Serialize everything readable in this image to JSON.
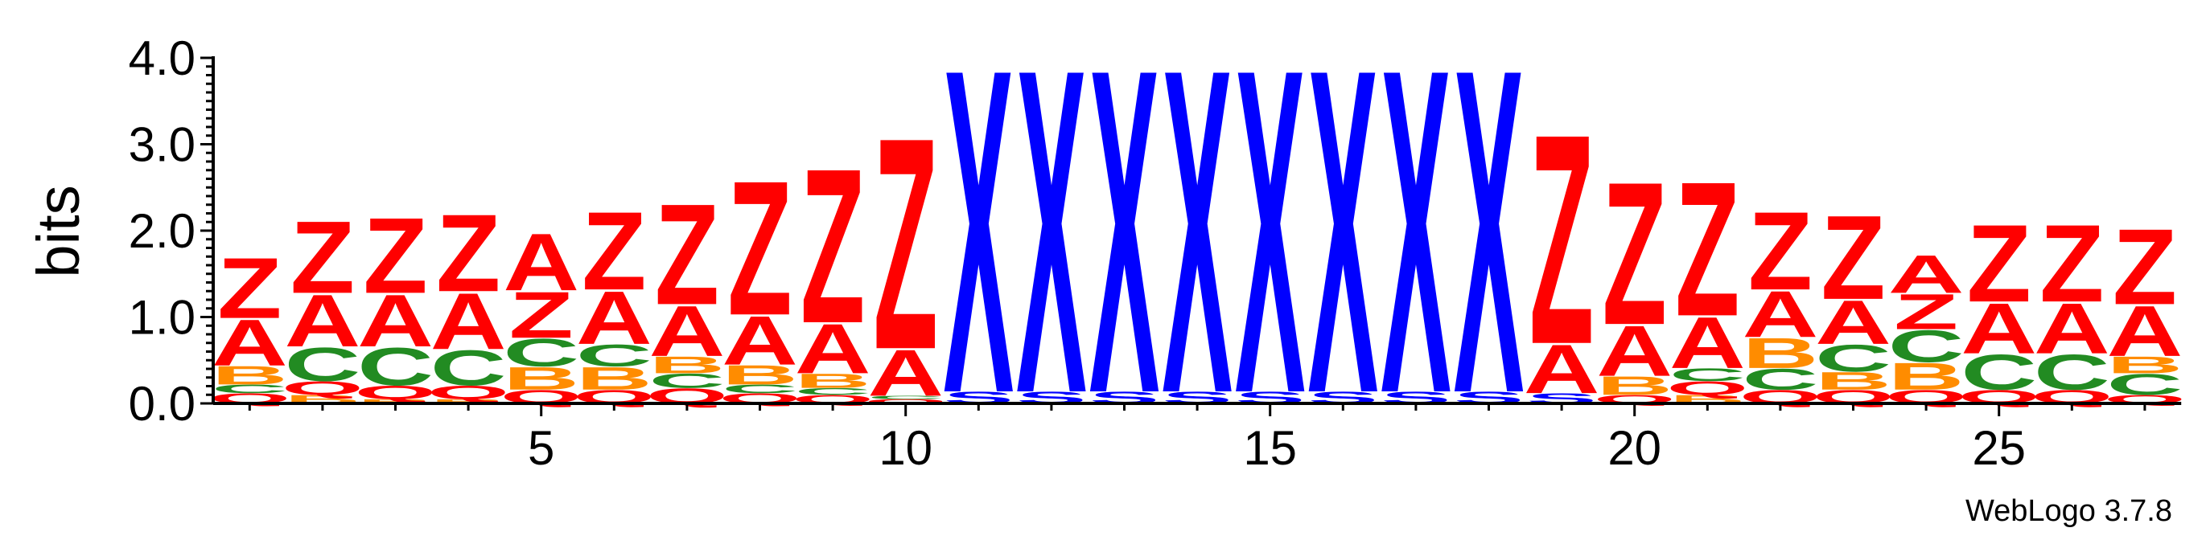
{
  "chart_data": {
    "type": "sequence-logo",
    "ylabel": "bits",
    "ylim": [
      0,
      4
    ],
    "yticks": [
      "0.0",
      "1.0",
      "2.0",
      "3.0",
      "4.0"
    ],
    "xticks": [
      5,
      10,
      15,
      20,
      25
    ],
    "positions": [
      1,
      2,
      3,
      4,
      5,
      6,
      7,
      8,
      9,
      10,
      11,
      12,
      13,
      14,
      15,
      16,
      17,
      18,
      19,
      20,
      21,
      22,
      23,
      24,
      25,
      26,
      27
    ],
    "colors": {
      "Z": "#ff0000",
      "A": "#ff0000",
      "Q": "#ff0000",
      "C": "#228b22",
      "B": "#ff8c00",
      "X": "#0000ff",
      "S": "#0000ff"
    },
    "stacks": [
      [
        [
          "Q",
          0.12
        ],
        [
          "C",
          0.1
        ],
        [
          "B",
          0.22
        ],
        [
          "A",
          0.55
        ],
        [
          "Z",
          0.72
        ]
      ],
      [
        [
          "B",
          0.1
        ],
        [
          "Q",
          0.16
        ],
        [
          "C",
          0.4
        ],
        [
          "A",
          0.62
        ],
        [
          "Z",
          0.86
        ]
      ],
      [
        [
          "B",
          0.05
        ],
        [
          "Q",
          0.16
        ],
        [
          "C",
          0.45
        ],
        [
          "A",
          0.62
        ],
        [
          "Z",
          0.9
        ]
      ],
      [
        [
          "B",
          0.05
        ],
        [
          "Q",
          0.16
        ],
        [
          "C",
          0.42
        ],
        [
          "A",
          0.67
        ],
        [
          "Z",
          0.92
        ]
      ],
      [
        [
          "Q",
          0.16
        ],
        [
          "B",
          0.27
        ],
        [
          "C",
          0.33
        ],
        [
          "Z",
          0.55
        ],
        [
          "A",
          0.68
        ]
      ],
      [
        [
          "Q",
          0.16
        ],
        [
          "B",
          0.27
        ],
        [
          "C",
          0.26
        ],
        [
          "A",
          0.63
        ],
        [
          "Z",
          0.93
        ]
      ],
      [
        [
          "Q",
          0.18
        ],
        [
          "C",
          0.17
        ],
        [
          "B",
          0.2
        ],
        [
          "A",
          0.6
        ],
        [
          "Z",
          1.2
        ]
      ],
      [
        [
          "Q",
          0.12
        ],
        [
          "C",
          0.1
        ],
        [
          "B",
          0.23
        ],
        [
          "A",
          0.58
        ],
        [
          "Z",
          1.6
        ]
      ],
      [
        [
          "Q",
          0.1
        ],
        [
          "C",
          0.08
        ],
        [
          "B",
          0.17
        ],
        [
          "A",
          0.59
        ],
        [
          "Z",
          1.84
        ]
      ],
      [
        [
          "Q",
          0.05
        ],
        [
          "C",
          0.04
        ],
        [
          "A",
          0.55
        ],
        [
          "Z",
          2.52
        ]
      ],
      [
        [
          "S",
          0.14
        ],
        [
          "X",
          3.86
        ]
      ],
      [
        [
          "S",
          0.14
        ],
        [
          "X",
          3.86
        ]
      ],
      [
        [
          "S",
          0.14
        ],
        [
          "X",
          3.86
        ]
      ],
      [
        [
          "S",
          0.14
        ],
        [
          "X",
          3.86
        ]
      ],
      [
        [
          "S",
          0.14
        ],
        [
          "X",
          3.86
        ]
      ],
      [
        [
          "S",
          0.14
        ],
        [
          "X",
          3.86
        ]
      ],
      [
        [
          "S",
          0.14
        ],
        [
          "X",
          3.86
        ]
      ],
      [
        [
          "S",
          0.14
        ],
        [
          "X",
          3.86
        ]
      ],
      [
        [
          "S",
          0.12
        ],
        [
          "A",
          0.58
        ],
        [
          "Z",
          2.5
        ]
      ],
      [
        [
          "Q",
          0.1
        ],
        [
          "B",
          0.22
        ],
        [
          "A",
          0.6
        ],
        [
          "Z",
          1.7
        ]
      ],
      [
        [
          "B",
          0.1
        ],
        [
          "Q",
          0.16
        ],
        [
          "C",
          0.15
        ],
        [
          "A",
          0.61
        ],
        [
          "Z",
          1.6
        ]
      ],
      [
        [
          "Q",
          0.16
        ],
        [
          "C",
          0.25
        ],
        [
          "B",
          0.36
        ],
        [
          "A",
          0.55
        ],
        [
          "Z",
          0.93
        ]
      ],
      [
        [
          "Q",
          0.16
        ],
        [
          "B",
          0.21
        ],
        [
          "C",
          0.32
        ],
        [
          "A",
          0.52
        ],
        [
          "Z",
          1.0
        ]
      ],
      [
        [
          "Q",
          0.16
        ],
        [
          "B",
          0.32
        ],
        [
          "C",
          0.38
        ],
        [
          "Z",
          0.42
        ],
        [
          "A",
          0.45
        ]
      ],
      [
        [
          "Q",
          0.16
        ],
        [
          "C",
          0.42
        ],
        [
          "A",
          0.6
        ],
        [
          "Z",
          0.92
        ]
      ],
      [
        [
          "Q",
          0.16
        ],
        [
          "C",
          0.42
        ],
        [
          "A",
          0.6
        ],
        [
          "Z",
          0.92
        ]
      ],
      [
        [
          "Q",
          0.1
        ],
        [
          "C",
          0.25
        ],
        [
          "B",
          0.2
        ],
        [
          "A",
          0.6
        ],
        [
          "Z",
          0.9
        ]
      ]
    ]
  },
  "credit": "WebLogo 3.7.8"
}
